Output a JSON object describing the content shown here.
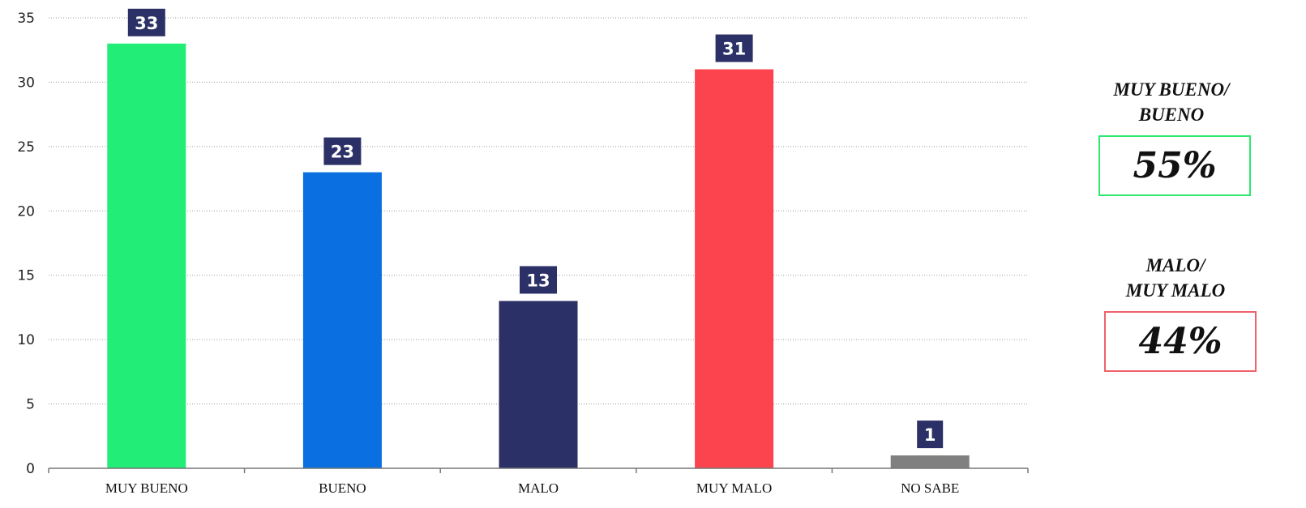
{
  "chart_data": {
    "type": "bar",
    "categories": [
      "MUY BUENO",
      "BUENO",
      "MALO",
      "MUY MALO",
      "NO SABE"
    ],
    "values": [
      33,
      23,
      13,
      31,
      1
    ],
    "data_labels": [
      "33",
      "23",
      "13",
      "31",
      "1"
    ],
    "bar_colors": [
      "#22EE77",
      "#0A6FE0",
      "#2B3166",
      "#FC444F",
      "#808080"
    ],
    "data_label_color": "#2B3166",
    "ylim": [
      0,
      35
    ],
    "yticks": [
      0,
      5,
      10,
      15,
      20,
      25,
      30,
      35
    ],
    "grid": true,
    "title": "",
    "xlabel": "",
    "ylabel": ""
  },
  "summary": {
    "positive": {
      "title": "MUY BUENO/\nBUENO",
      "value": "55%",
      "border_color": "#2EE86F"
    },
    "negative": {
      "title": "MALO/\nMUY MALO",
      "value": "44%",
      "border_color": "#F0626A"
    }
  }
}
